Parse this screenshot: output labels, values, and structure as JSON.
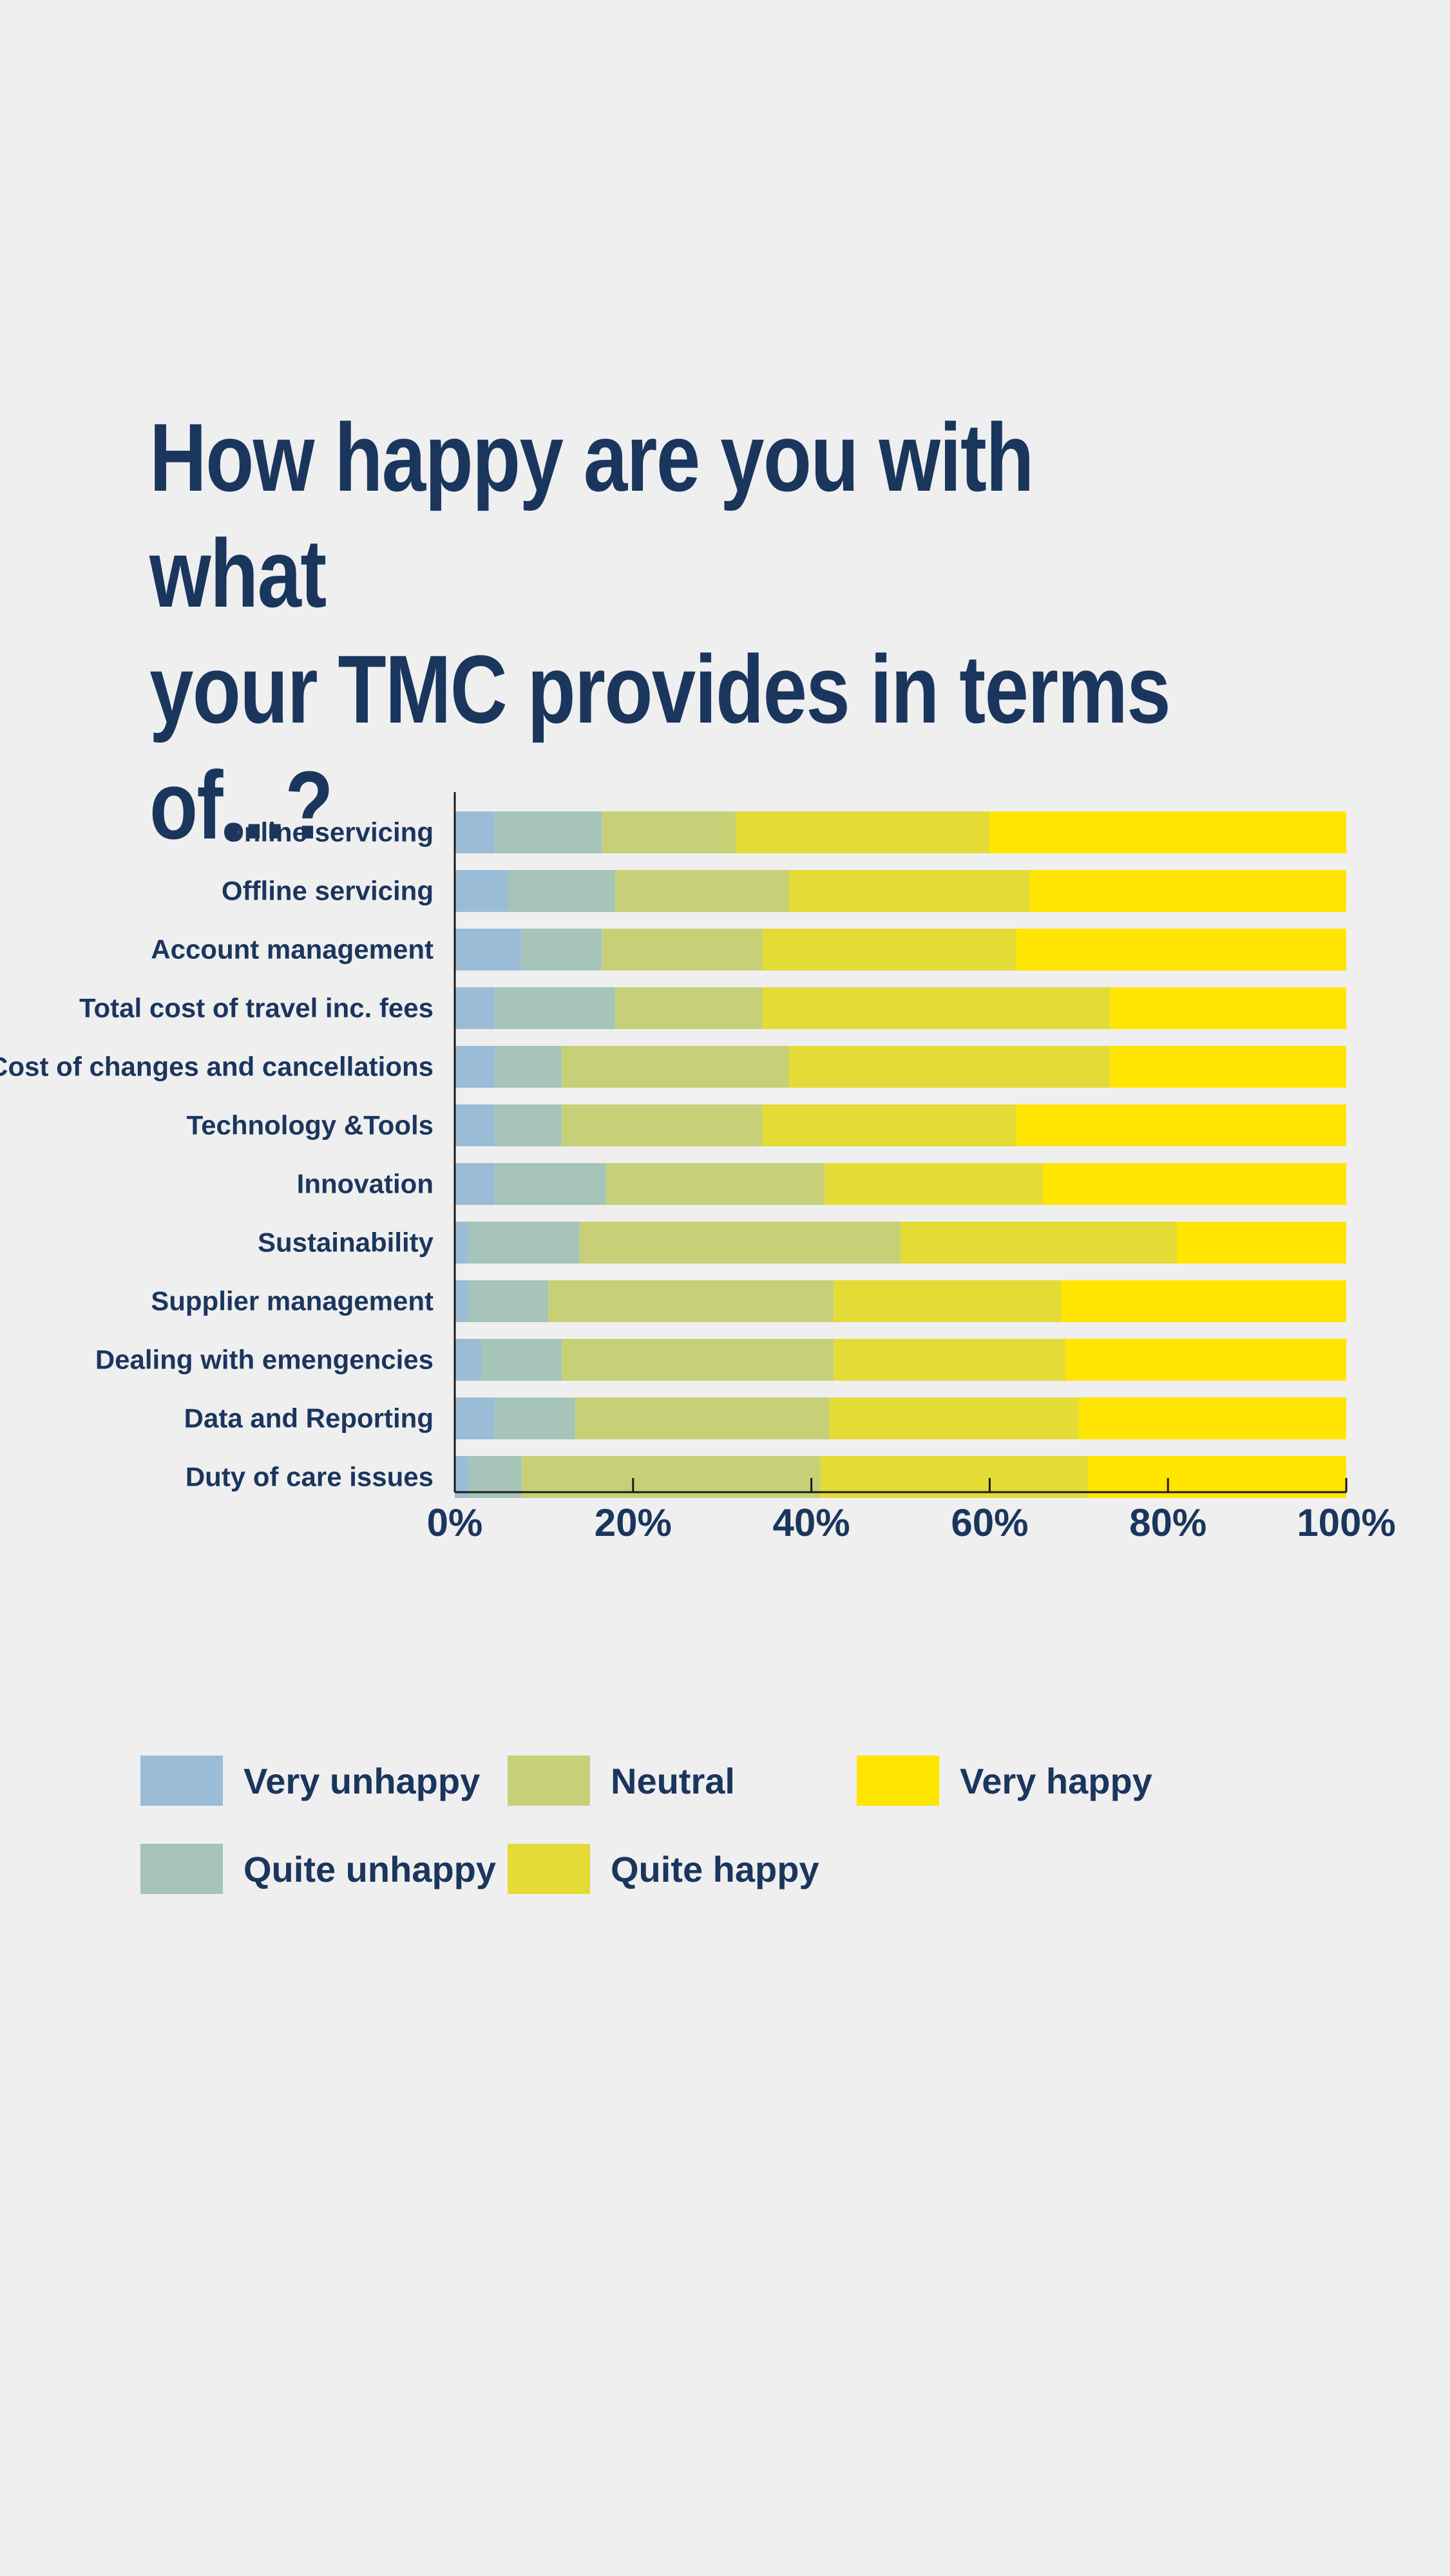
{
  "title": {
    "line1": "How happy are you with what",
    "line2": "your TMC provides in terms of...?"
  },
  "chart_data": {
    "type": "bar",
    "orientation": "horizontal",
    "stacked": true,
    "categories": [
      "Online servicing",
      "Offline servicing",
      "Account management",
      "Total cost of travel inc. fees",
      "Cost of changes and cancellations",
      "Technology &Tools",
      "Innovation",
      "Sustainability",
      "Supplier management",
      "Dealing with emengencies",
      "Data and Reporting",
      "Duty of care issues"
    ],
    "series": [
      {
        "name": "Very unhappy",
        "color": "#9bbcd6",
        "values": [
          4.5,
          6,
          7.5,
          4.5,
          4.5,
          4.5,
          4.5,
          1.5,
          1.5,
          3,
          4.5,
          1.5
        ]
      },
      {
        "name": "Quite unhappy",
        "color": "#a6c4b8",
        "values": [
          12,
          12,
          9,
          13.5,
          7.5,
          7.5,
          12.5,
          12.5,
          9,
          9,
          9,
          6
        ]
      },
      {
        "name": "Neutral",
        "color": "#c7d077",
        "values": [
          15,
          19.5,
          18,
          16.5,
          25.5,
          22.5,
          24.5,
          36,
          32,
          30.5,
          28.5,
          33.5
        ]
      },
      {
        "name": "Quite happy",
        "color": "#e4db37",
        "values": [
          28.5,
          27,
          28.5,
          39,
          36,
          28.5,
          24.5,
          31,
          25.5,
          26,
          28,
          30
        ]
      },
      {
        "name": "Very happy",
        "color": "#ffe500",
        "values": [
          40,
          35.5,
          37,
          26.5,
          26.5,
          37,
          34,
          19,
          32,
          31.5,
          30,
          29
        ]
      }
    ],
    "x_ticks": [
      "0%",
      "20%",
      "40%",
      "60%",
      "80%",
      "100%"
    ],
    "xlim": [
      0,
      100
    ],
    "grid": false,
    "legend": "bottom",
    "legend_order": [
      "Very unhappy",
      "Neutral",
      "Very happy",
      "Quite unhappy",
      "Quite happy"
    ]
  }
}
